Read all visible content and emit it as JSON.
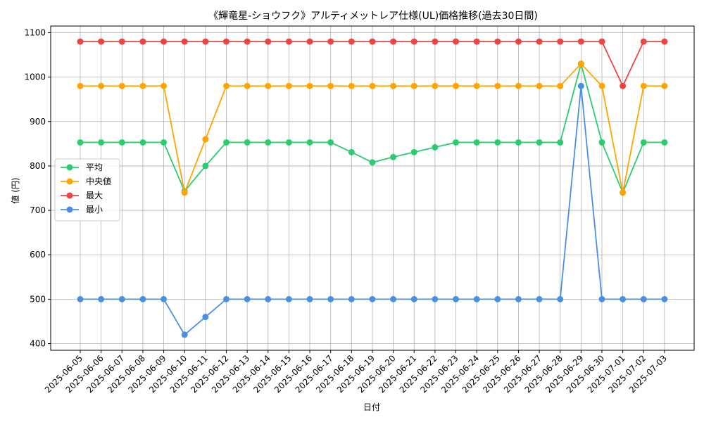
{
  "chart_data": {
    "type": "line",
    "title": "《輝竜星-ショウフク》アルティメットレア仕様(UL)価格推移(過去30日間)",
    "xlabel": "日付",
    "ylabel": "値 (円)",
    "ylim": [
      385,
      1115
    ],
    "yticks": [
      400,
      500,
      600,
      700,
      800,
      900,
      1000,
      1100
    ],
    "grid": true,
    "legend_position": "center-left",
    "categories": [
      "2025-06-05",
      "2025-06-06",
      "2025-06-07",
      "2025-06-08",
      "2025-06-09",
      "2025-06-10",
      "2025-06-11",
      "2025-06-12",
      "2025-06-13",
      "2025-06-14",
      "2025-06-15",
      "2025-06-16",
      "2025-06-17",
      "2025-06-18",
      "2025-06-19",
      "2025-06-20",
      "2025-06-21",
      "2025-06-22",
      "2025-06-23",
      "2025-06-24",
      "2025-06-25",
      "2025-06-26",
      "2025-06-27",
      "2025-06-28",
      "2025-06-29",
      "2025-06-30",
      "2025-07-01",
      "2025-07-02",
      "2025-07-03"
    ],
    "series": [
      {
        "name": "平均",
        "color": "#2ecc71",
        "values": [
          853,
          853,
          853,
          853,
          853,
          743,
          800,
          853,
          853,
          853,
          853,
          853,
          853,
          831,
          808,
          820,
          831,
          842,
          853,
          853,
          853,
          853,
          853,
          853,
          1030,
          853,
          740,
          853,
          853
        ]
      },
      {
        "name": "中央値",
        "color": "#ffa500",
        "values": [
          980,
          980,
          980,
          980,
          980,
          740,
          860,
          980,
          980,
          980,
          980,
          980,
          980,
          980,
          980,
          980,
          980,
          980,
          980,
          980,
          980,
          980,
          980,
          980,
          1030,
          980,
          740,
          980,
          980
        ]
      },
      {
        "name": "最大",
        "color": "#ef4444",
        "values": [
          1080,
          1080,
          1080,
          1080,
          1080,
          1080,
          1080,
          1080,
          1080,
          1080,
          1080,
          1080,
          1080,
          1080,
          1080,
          1080,
          1080,
          1080,
          1080,
          1080,
          1080,
          1080,
          1080,
          1080,
          1080,
          1080,
          980,
          1080,
          1080
        ]
      },
      {
        "name": "最小",
        "color": "#4a90e2",
        "values": [
          500,
          500,
          500,
          500,
          500,
          420,
          460,
          500,
          500,
          500,
          500,
          500,
          500,
          500,
          500,
          500,
          500,
          500,
          500,
          500,
          500,
          500,
          500,
          500,
          980,
          500,
          500,
          500,
          500
        ]
      }
    ]
  }
}
